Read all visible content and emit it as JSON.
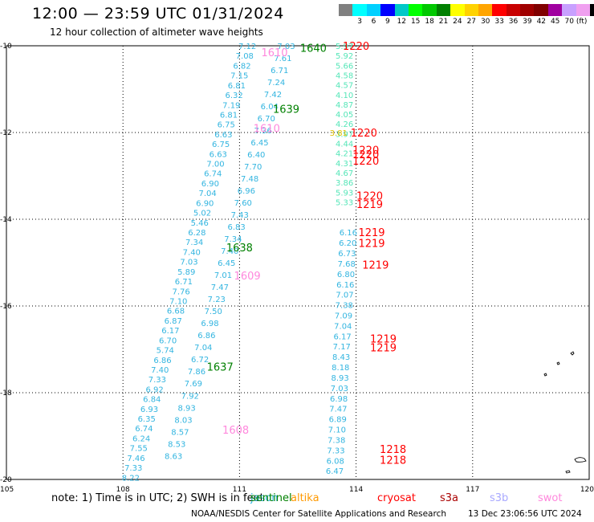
{
  "header": {
    "title": "12:00 — 23:59 UTC 01/31/2024",
    "subtitle": "12 hour collection of altimeter wave heights"
  },
  "colorbar": {
    "colors": [
      "#808080",
      "#00ffff",
      "#00d0ff",
      "#0000ff",
      "#00c8c8",
      "#00ff00",
      "#00c800",
      "#008000",
      "#ffff00",
      "#ffd200",
      "#ffa500",
      "#ff0000",
      "#c80000",
      "#a00000",
      "#800000",
      "#a000a0",
      "#c8a0ff",
      "#f0a0f0",
      "#000000"
    ],
    "labels": [
      "3",
      "6",
      "9",
      "12",
      "15",
      "18",
      "21",
      "24",
      "27",
      "30",
      "33",
      "36",
      "39",
      "42",
      "45",
      "70 (ft)"
    ]
  },
  "axes": {
    "lon_ticks": [
      "105",
      "108",
      "111",
      "114",
      "117",
      "120"
    ],
    "lat_ticks": [
      "-10",
      "-12",
      "-14",
      "-16",
      "-18",
      "-20"
    ]
  },
  "track_colors": {
    "jason": "#33b5e0",
    "sentinel_label": "#008000",
    "cryosat": "#ff0000",
    "swot": "#ff88dd",
    "s3b": "#a4d6f0",
    "green_val": "#55e6b8"
  },
  "tracks": [
    {
      "time": "1637",
      "lon0": 108.2,
      "lat0": -19.95,
      "lon1": 111.2,
      "lat1": -10.0,
      "values": [
        "8.22",
        "7.33",
        "7.46",
        "7.55",
        "6.24",
        "6.74",
        "6.35",
        "6.93",
        "6.84",
        "6.92",
        "7.33",
        "7.40",
        "6.86",
        "5.74",
        "6.70",
        "6.17",
        "6.87",
        "6.68",
        "7.10",
        "7.76",
        "6.71",
        "5.89",
        "7.03",
        "7.40",
        "7.34",
        "6.28",
        "5.46",
        "5.02",
        "6.90",
        "7.04",
        "6.90",
        "6.74",
        "7.00",
        "6.63",
        "6.75",
        "6.63",
        "6.75",
        "6.81",
        "7.19",
        "6.32",
        "6.81",
        "7.15",
        "6.82",
        "7.08",
        "7.12"
      ]
    },
    {
      "time": "1638",
      "lon0": 109.3,
      "lat0": -19.45,
      "lon1": 112.2,
      "lat1": -10.0,
      "values": [
        "8.63",
        "8.53",
        "8.57",
        "8.03",
        "8.93",
        "7.92",
        "7.69",
        "7.86",
        "6.72",
        "7.04",
        "6.86",
        "6.98",
        "7.50",
        "7.23",
        "7.47",
        "7.01",
        "6.45",
        "7.40",
        "7.34",
        "6.83",
        "7.43",
        "7.60",
        "6.96",
        "7.48",
        "7.70",
        "6.40",
        "6.45",
        "7.36",
        "6.70",
        "6.04",
        "7.42",
        "7.24",
        "6.71",
        "7.61",
        "7.03"
      ]
    },
    {
      "time": "1219",
      "lon0": 113.45,
      "lat0": -19.8,
      "lon1": 113.8,
      "lat1": -14.3,
      "values": [
        "6.47",
        "6.08",
        "7.33",
        "7.38",
        "7.10",
        "6.89",
        "7.47",
        "6.98",
        "7.03",
        "8.93",
        "8.18",
        "8.43",
        "7.17",
        "6.17",
        "7.04",
        "7.09",
        "7.38",
        "7.07",
        "6.16",
        "6.80",
        "7.68",
        "6.73",
        "6.20",
        "6.16"
      ]
    },
    {
      "time": "1220",
      "lon0": 113.7,
      "lat0": -13.6,
      "lon1": 113.7,
      "lat1": -10.0,
      "values": [
        "5.33",
        "5.93",
        "3.86",
        "4.67",
        "4.31",
        "4.21",
        "4.44",
        "3.97",
        "4.26",
        "4.05",
        "4.87",
        "4.10",
        "4.57",
        "4.58",
        "5.66",
        "5.92",
        "5.97"
      ]
    }
  ],
  "labels": [
    {
      "text": "1220",
      "lon": 114.0,
      "lat": -10.0,
      "color": "#ff0000"
    },
    {
      "text": "1640",
      "lon": 112.9,
      "lat": -10.05,
      "color": "#008000"
    },
    {
      "text": "1610",
      "lon": 111.9,
      "lat": -10.15,
      "color": "#ff88dd"
    },
    {
      "text": "1639",
      "lon": 112.2,
      "lat": -11.45,
      "color": "#008000"
    },
    {
      "text": "1610",
      "lon": 111.7,
      "lat": -11.9,
      "color": "#ff88dd"
    },
    {
      "text": "1220",
      "lon": 114.2,
      "lat": -12.0,
      "color": "#ff0000"
    },
    {
      "text": "1220",
      "lon": 114.25,
      "lat": -12.4,
      "color": "#ff0000"
    },
    {
      "text": "1220",
      "lon": 114.25,
      "lat": -12.5,
      "color": "#ff0000"
    },
    {
      "text": "1220",
      "lon": 114.25,
      "lat": -12.65,
      "color": "#ff0000"
    },
    {
      "text": "1220",
      "lon": 114.35,
      "lat": -13.45,
      "color": "#ff0000"
    },
    {
      "text": "1219",
      "lon": 114.35,
      "lat": -13.65,
      "color": "#ff0000"
    },
    {
      "text": "1219",
      "lon": 114.4,
      "lat": -14.3,
      "color": "#ff0000"
    },
    {
      "text": "1219",
      "lon": 114.4,
      "lat": -14.55,
      "color": "#ff0000"
    },
    {
      "text": "1638",
      "lon": 111.0,
      "lat": -14.65,
      "color": "#008000"
    },
    {
      "text": "1219",
      "lon": 114.5,
      "lat": -15.05,
      "color": "#ff0000"
    },
    {
      "text": "1609",
      "lon": 111.2,
      "lat": -15.3,
      "color": "#ff88dd"
    },
    {
      "text": "1219",
      "lon": 114.7,
      "lat": -16.75,
      "color": "#ff0000"
    },
    {
      "text": "1219",
      "lon": 114.7,
      "lat": -16.95,
      "color": "#ff0000"
    },
    {
      "text": "1637",
      "lon": 110.5,
      "lat": -17.4,
      "color": "#008000"
    },
    {
      "text": "1608",
      "lon": 110.9,
      "lat": -18.85,
      "color": "#ff88dd"
    },
    {
      "text": "1218",
      "lon": 114.95,
      "lat": -19.3,
      "color": "#ff0000"
    },
    {
      "text": "1218",
      "lon": 114.95,
      "lat": -19.55,
      "color": "#ff0000"
    }
  ],
  "yellow_values": [
    {
      "text": "3.81",
      "lon": 113.55,
      "lat": -12.0
    }
  ],
  "footer": {
    "note": "note:  1) Time is in UTC; 2) SWH is in feet",
    "legend": [
      {
        "name": "jason",
        "color": "#33b5e0"
      },
      {
        "name": "sentinel",
        "color": "#008000"
      },
      {
        "name": "altika",
        "color": "#ff9900"
      },
      {
        "name": "cryosat",
        "color": "#ff0000"
      },
      {
        "name": "s3a",
        "color": "#aa0000"
      },
      {
        "name": "s3b",
        "color": "#a8a8ff"
      },
      {
        "name": "swot",
        "color": "#ff88dd"
      }
    ],
    "credit": "NOAA/NESDIS Center for Satellite Applications and Research",
    "timestamp": "13 Dec 23:06:56 UTC 2024"
  }
}
